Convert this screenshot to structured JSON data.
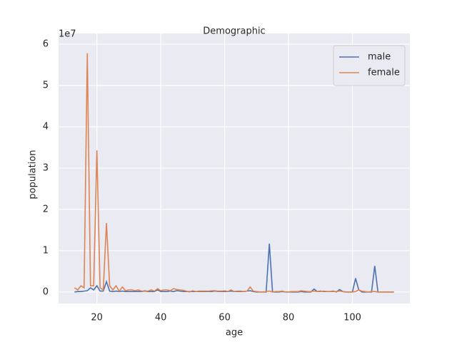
{
  "chart_data": {
    "type": "line",
    "title": "Demographic",
    "xlabel": "age",
    "ylabel": "population",
    "y_offset_label": "1e7",
    "x": [
      13,
      14,
      15,
      16,
      17,
      18,
      19,
      20,
      21,
      22,
      23,
      24,
      25,
      26,
      27,
      28,
      29,
      30,
      31,
      32,
      33,
      34,
      35,
      36,
      37,
      38,
      39,
      40,
      41,
      42,
      43,
      44,
      45,
      46,
      47,
      48,
      49,
      50,
      51,
      52,
      53,
      54,
      55,
      56,
      57,
      58,
      59,
      60,
      61,
      62,
      63,
      64,
      65,
      66,
      67,
      68,
      69,
      70,
      71,
      72,
      73,
      74,
      75,
      76,
      77,
      78,
      79,
      80,
      81,
      82,
      83,
      84,
      85,
      86,
      87,
      88,
      89,
      90,
      91,
      92,
      93,
      94,
      95,
      96,
      97,
      98,
      99,
      100,
      101,
      102,
      103,
      104,
      105,
      106,
      107,
      108,
      109,
      110,
      111,
      112,
      113
    ],
    "series": [
      {
        "name": "male",
        "color": "#4c72b0",
        "values": [
          0,
          0.01,
          0.01,
          0.02,
          0.03,
          0.1,
          0.05,
          0.15,
          0.02,
          0.02,
          0.25,
          0.02,
          0.01,
          0.02,
          0.01,
          0.02,
          0.01,
          0.01,
          0.01,
          0.01,
          0.01,
          0.01,
          0.02,
          0.01,
          0.01,
          0.01,
          0.05,
          0.01,
          0.01,
          0.01,
          0.02,
          0.01,
          0.03,
          0.02,
          0.01,
          0.01,
          0.01,
          0.01,
          0.01,
          0.01,
          0.01,
          0.01,
          0.01,
          0.01,
          0.02,
          0.01,
          0.01,
          0.01,
          0.01,
          0.02,
          0.01,
          0.01,
          0.01,
          0.01,
          0.02,
          0.03,
          0.01,
          0,
          0,
          0,
          0,
          1.17,
          0,
          0,
          0,
          0.01,
          0,
          0,
          0,
          0,
          0,
          0.01,
          0,
          0,
          0,
          0.07,
          0.01,
          0.02,
          0.01,
          0.01,
          0.01,
          0.02,
          0,
          0.06,
          0.01,
          0,
          0,
          0,
          0.33,
          0.05,
          0,
          0,
          0,
          0,
          0.63,
          0,
          0,
          0,
          0,
          0,
          0
        ]
      },
      {
        "name": "female",
        "color": "#dd8452",
        "values": [
          0.1,
          0.05,
          0.15,
          0.1,
          5.78,
          0.15,
          0.15,
          3.43,
          0.1,
          0.05,
          1.67,
          0.15,
          0.05,
          0.15,
          0.02,
          0.12,
          0.03,
          0.05,
          0.05,
          0.03,
          0.05,
          0.02,
          0.03,
          0.02,
          0.05,
          0.02,
          0.08,
          0.03,
          0.05,
          0.05,
          0.03,
          0.08,
          0.06,
          0.05,
          0.04,
          0.02,
          0,
          0.03,
          0.01,
          0.02,
          0.02,
          0.02,
          0.02,
          0.03,
          0.03,
          0.02,
          0.02,
          0.03,
          0.01,
          0.05,
          0.01,
          0.02,
          0.02,
          0.01,
          0.02,
          0.12,
          0.02,
          0.01,
          0,
          0,
          0.01,
          0.02,
          0,
          0.01,
          0.01,
          0.02,
          0,
          0,
          0.01,
          0.01,
          0.01,
          0.03,
          0.02,
          0.01,
          0.01,
          0.02,
          0.01,
          0.01,
          0.02,
          0.01,
          0.01,
          0.01,
          0.01,
          0.02,
          0.01,
          0,
          0,
          0,
          0.01,
          0.05,
          0.02,
          0.01,
          0,
          0.01,
          0.01,
          0,
          0,
          0,
          0,
          0,
          0
        ]
      }
    ],
    "xlim": [
      8,
      118
    ],
    "xticks": [
      20,
      40,
      60,
      80,
      100
    ],
    "ylim": [
      -0.28,
      6.26
    ],
    "yticks": [
      0,
      1,
      2,
      3,
      4,
      5,
      6
    ],
    "grid": true,
    "legend": "upper right"
  }
}
